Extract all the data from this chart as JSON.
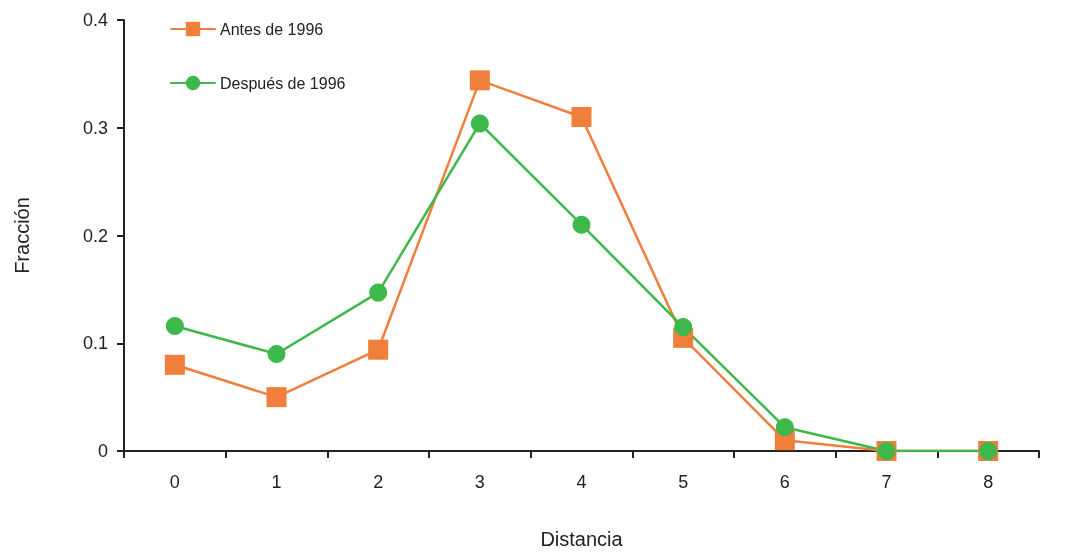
{
  "chart_data": {
    "type": "line",
    "xlabel": "Distancia",
    "ylabel": "Fracción",
    "categories": [
      "0",
      "1",
      "2",
      "3",
      "4",
      "5",
      "6",
      "7",
      "8"
    ],
    "series": [
      {
        "name": "Antes de 1996",
        "color": "#f07f3c",
        "marker": "square",
        "values": [
          0.08,
          0.05,
          0.094,
          0.344,
          0.31,
          0.105,
          0.01,
          0,
          0
        ]
      },
      {
        "name": "Después de 1996",
        "color": "#3cb94a",
        "marker": "circle",
        "values": [
          0.116,
          0.09,
          0.147,
          0.304,
          0.21,
          0.115,
          0.022,
          0,
          0
        ]
      }
    ],
    "ylim": [
      0,
      0.4
    ],
    "yticks": [
      0,
      0.1,
      0.2,
      0.3,
      0.4
    ],
    "grid": false,
    "legend": "top left",
    "line_style": "solid"
  }
}
